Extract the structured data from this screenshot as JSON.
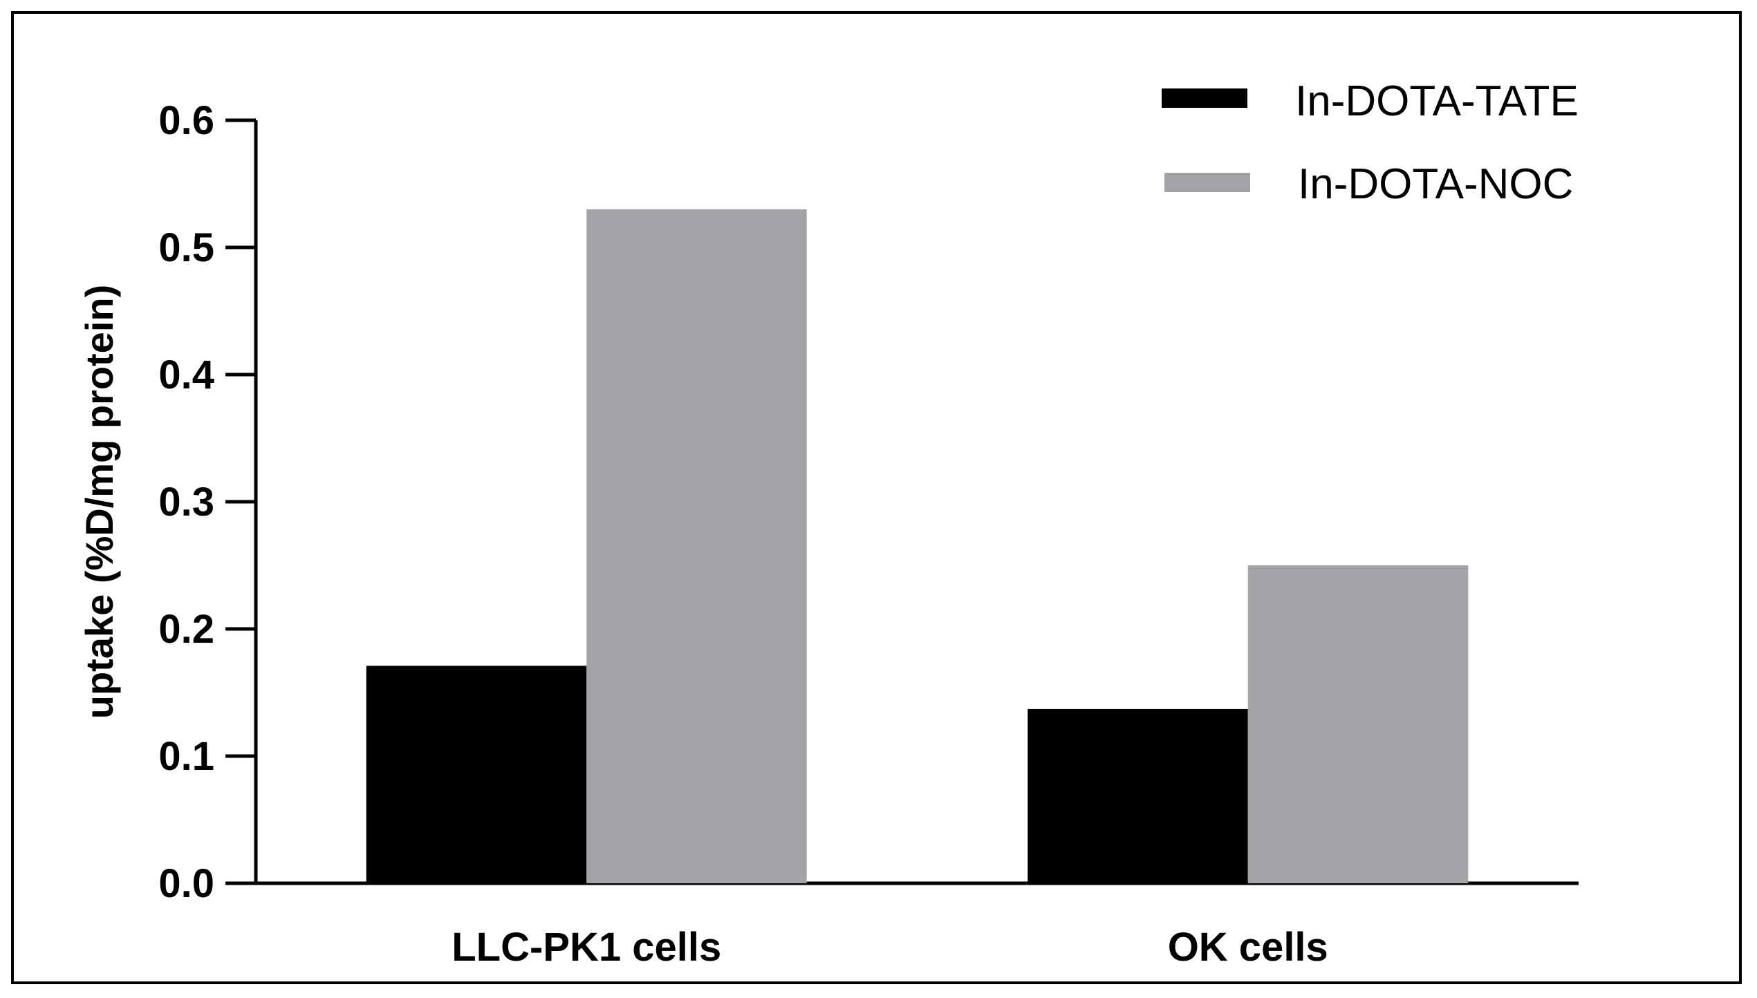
{
  "chart_data": {
    "type": "bar",
    "title": "",
    "xlabel": "",
    "ylabel": "uptake (%D/mg protein)",
    "ylim": [
      0,
      0.6
    ],
    "yticks": [
      "0.0",
      "0.1",
      "0.2",
      "0.3",
      "0.4",
      "0.5",
      "0.6"
    ],
    "categories": [
      "LLC-PK1 cells",
      "OK cells"
    ],
    "series": [
      {
        "name": "In-DOTA-TATE",
        "color": "#000000",
        "values": [
          0.171,
          0.137
        ]
      },
      {
        "name": "In-DOTA-NOC",
        "color": "#a3a2a6",
        "values": [
          0.53,
          0.25
        ]
      }
    ],
    "legend_position": "top-right",
    "grid": false
  }
}
